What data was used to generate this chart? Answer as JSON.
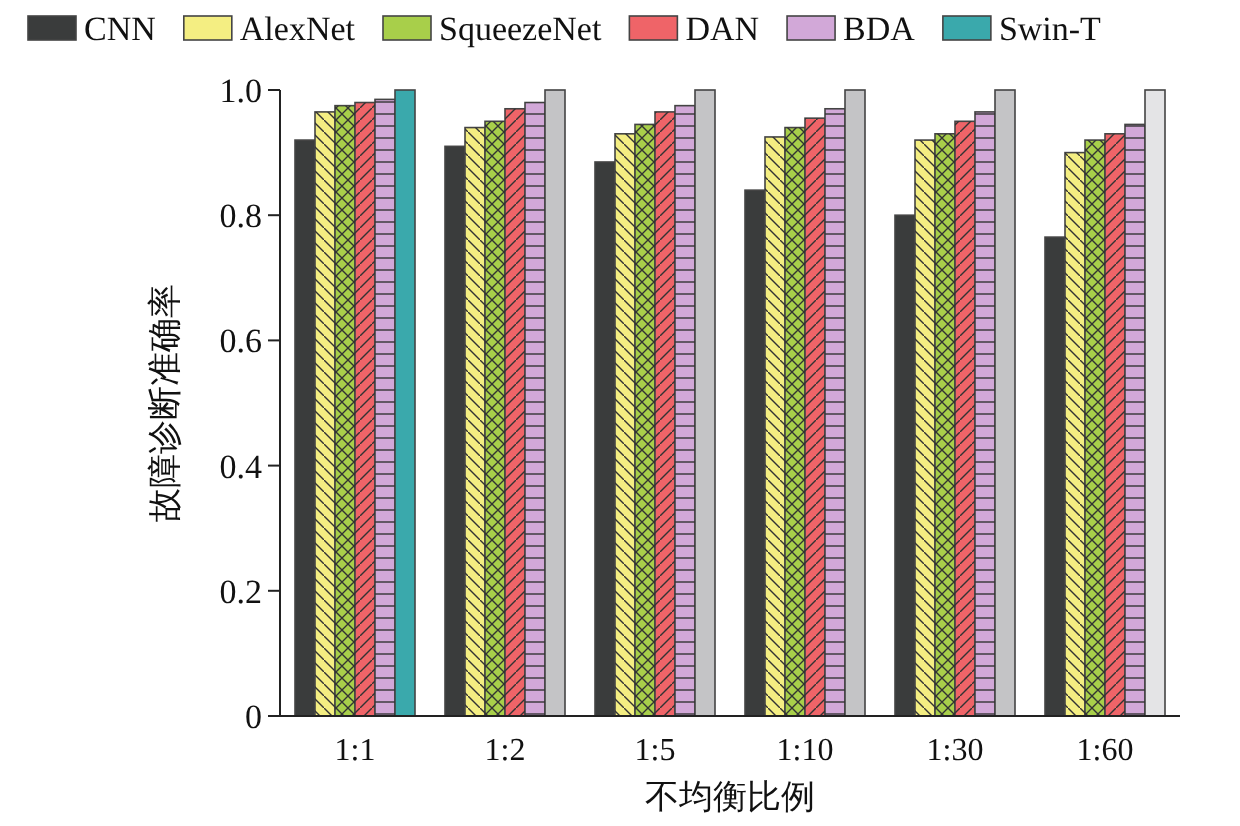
{
  "chart_data": {
    "type": "bar",
    "ylabel": "故障诊断准确率",
    "xlabel": "不均衡比例",
    "categories": [
      "1:1",
      "1:2",
      "1:5",
      "1:10",
      "1:30",
      "1:60"
    ],
    "series": [
      {
        "name": "CNN",
        "color": "#3a3c3c",
        "values": [
          0.92,
          0.91,
          0.885,
          0.84,
          0.8,
          0.765
        ]
      },
      {
        "name": "AlexNet",
        "color": "#f4ee82",
        "values": [
          0.965,
          0.94,
          0.93,
          0.925,
          0.92,
          0.9
        ]
      },
      {
        "name": "SqueezeNet",
        "color": "#a8cf4a",
        "values": [
          0.975,
          0.95,
          0.945,
          0.94,
          0.93,
          0.92
        ]
      },
      {
        "name": "DAN",
        "color": "#ef6468",
        "values": [
          0.98,
          0.97,
          0.965,
          0.955,
          0.95,
          0.93
        ]
      },
      {
        "name": "BDA",
        "color": "#d2a8d8",
        "values": [
          0.985,
          0.98,
          0.975,
          0.97,
          0.965,
          0.945
        ]
      },
      {
        "name": "Swin-T",
        "color": "#3aa9ac",
        "colors": [
          "#3aa9ac",
          "#c4c4c6",
          "#c4c4c6",
          "#c4c4c6",
          "#c4c4c6",
          "#e4e4e6"
        ],
        "values": [
          1.0,
          1.0,
          1.0,
          1.0,
          1.0,
          1.0
        ]
      }
    ],
    "ylim": [
      0,
      1
    ],
    "yticks": [
      0,
      0.2,
      0.4,
      0.6,
      0.8,
      {
        "value": 1,
        "label": "1.0"
      }
    ],
    "legend": "top"
  }
}
